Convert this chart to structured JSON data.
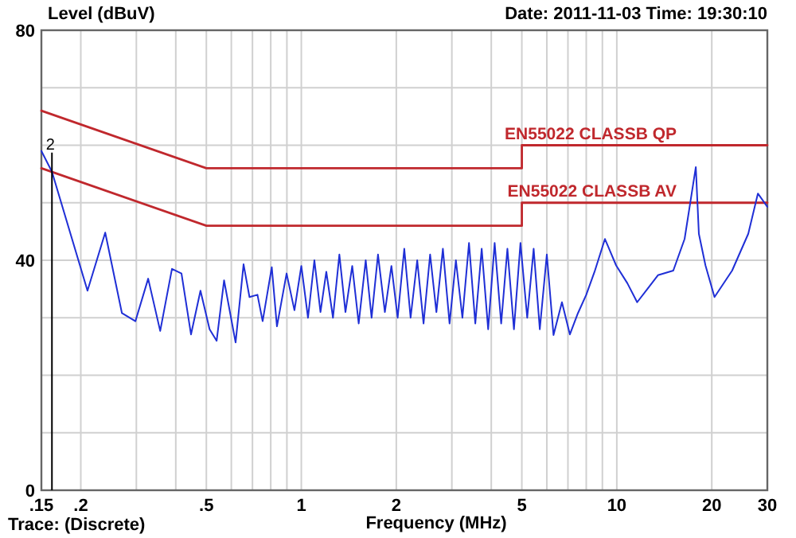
{
  "chart_data": {
    "type": "line",
    "title": "Date: 2011-11-03  Time: 19:30:10",
    "ylabel": "Level (dBuV)",
    "xlabel": "Frequency (MHz)",
    "log": "x",
    "grid": true,
    "marker": "none",
    "line_style": "solid",
    "xlim": [
      0.15,
      30
    ],
    "ylim": [
      0,
      80
    ],
    "xticks": [
      {
        "value": 0.15,
        "label": ".15"
      },
      {
        "value": 0.2,
        "label": ".2"
      },
      {
        "value": 0.3,
        "label": null
      },
      {
        "value": 0.4,
        "label": null
      },
      {
        "value": 0.5,
        "label": ".5"
      },
      {
        "value": 0.6,
        "label": null
      },
      {
        "value": 0.7,
        "label": null
      },
      {
        "value": 0.8,
        "label": null
      },
      {
        "value": 0.9,
        "label": null
      },
      1,
      2,
      {
        "value": 3,
        "label": null
      },
      {
        "value": 4,
        "label": null
      },
      5,
      {
        "value": 6,
        "label": null
      },
      {
        "value": 7,
        "label": null
      },
      {
        "value": 8,
        "label": null
      },
      {
        "value": 9,
        "label": null
      },
      10,
      20,
      30
    ],
    "yticks": [
      0,
      {
        "value": 10,
        "label": null
      },
      {
        "value": 20,
        "label": null
      },
      {
        "value": 30,
        "label": null
      },
      40,
      {
        "value": 50,
        "label": null
      },
      {
        "value": 60,
        "label": null
      },
      {
        "value": 70,
        "label": null
      },
      80
    ],
    "series": [
      {
        "name": "EN55022 CLASSB QP",
        "color": "#c0282d",
        "x": [
          0.15,
          0.5,
          5,
          5,
          30
        ],
        "values": [
          66,
          56,
          56,
          60,
          60
        ]
      },
      {
        "name": "EN55022 CLASSB AV",
        "color": "#c0282d",
        "x": [
          0.15,
          0.5,
          5,
          5,
          30
        ],
        "values": [
          56,
          46,
          46,
          50,
          50
        ]
      },
      {
        "color": "#1f2fd6",
        "x": [
          0.15,
          0.162,
          0.21,
          0.239,
          0.27,
          0.298,
          0.327,
          0.357,
          0.389,
          0.417,
          0.447,
          0.479,
          0.512,
          0.539,
          0.569,
          0.619,
          0.656,
          0.685,
          0.726,
          0.754,
          0.806,
          0.837,
          0.898,
          0.951,
          1.0,
          1.05,
          1.1,
          1.15,
          1.2,
          1.26,
          1.32,
          1.38,
          1.45,
          1.52,
          1.6,
          1.67,
          1.75,
          1.84,
          1.93,
          2.02,
          2.12,
          2.22,
          2.33,
          2.44,
          2.56,
          2.68,
          2.81,
          2.95,
          3.09,
          3.24,
          3.4,
          3.56,
          3.73,
          3.91,
          4.1,
          4.3,
          4.5,
          4.72,
          4.95,
          5.2,
          5.45,
          5.7,
          6.0,
          6.3,
          6.7,
          7.1,
          7.53,
          8.0,
          8.5,
          9.17,
          9.95,
          10.8,
          11.6,
          12.5,
          13.5,
          15.1,
          16.4,
          17.8,
          18.2,
          19.1,
          20.4,
          23.2,
          26.1,
          28.0,
          30
        ],
        "values": [
          59,
          55.4,
          34.7,
          44.8,
          30.8,
          29.4,
          36.8,
          27.7,
          38.5,
          37.7,
          27.1,
          34.7,
          28,
          26,
          36.5,
          25.7,
          39.3,
          33.6,
          34,
          29.4,
          38.8,
          28.5,
          37.7,
          31.3,
          39,
          30,
          40,
          31,
          38,
          30,
          41,
          31,
          39,
          29,
          40,
          30,
          41,
          31,
          39,
          30,
          42,
          30,
          40,
          29,
          41,
          31,
          42,
          29,
          40,
          30,
          43,
          29,
          42,
          28,
          43,
          29,
          42,
          28,
          43,
          30,
          42,
          28,
          41,
          27,
          32.7,
          27.1,
          30.8,
          34,
          38,
          43.7,
          39.1,
          36,
          32.7,
          35,
          37.4,
          38.2,
          43.7,
          56.2,
          44.6,
          39.1,
          33.6,
          38.2,
          44.6,
          51.6,
          49.3
        ]
      }
    ],
    "annotations": [
      {
        "text": "2",
        "x": 0.162,
        "y": 55.4
      },
      "Trace: (Discrete)"
    ]
  }
}
